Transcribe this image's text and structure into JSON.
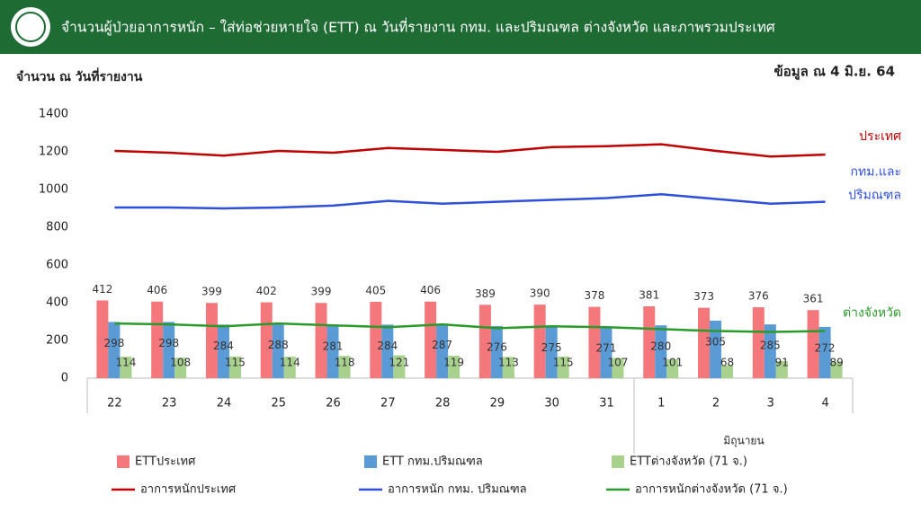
{
  "chart_data": {
    "type": "bar",
    "title": "จำนวนผู้ป่วยอาการหนัก – ใส่ท่อช่วยหายใจ (ETT) ณ วันที่รายงาน กทม. และปริมณฑล ต่างจังหวัด และภาพรวมประเทศ",
    "ylabel": "จำนวน ณ วันที่รายงาน",
    "note": "ข้อมูล ณ 4 มิ.ย. 64",
    "month_label": "มิถุนายน",
    "categories": [
      "22",
      "23",
      "24",
      "25",
      "26",
      "27",
      "28",
      "29",
      "30",
      "31",
      "1",
      "2",
      "3",
      "4"
    ],
    "ylim": [
      0,
      1400
    ],
    "yticks": [
      0,
      200,
      400,
      600,
      800,
      1000,
      1200,
      1400
    ],
    "grid": false,
    "series": [
      {
        "name": "ETTประเทศ",
        "type": "bar",
        "color": "#f4777c",
        "values": [
          412,
          406,
          399,
          402,
          399,
          405,
          406,
          389,
          390,
          378,
          381,
          373,
          376,
          361
        ]
      },
      {
        "name": "ETT กทม.ปริมณฑล",
        "type": "bar",
        "color": "#5b9bd5",
        "values": [
          298,
          298,
          284,
          288,
          281,
          284,
          287,
          276,
          275,
          271,
          280,
          305,
          285,
          272
        ]
      },
      {
        "name": "ETTต่างจังหวัด (71 จ.)",
        "type": "bar",
        "color": "#a9d18e",
        "values": [
          114,
          108,
          115,
          114,
          118,
          121,
          119,
          113,
          115,
          107,
          101,
          68,
          91,
          89
        ]
      },
      {
        "name": "อาการหนักประเทศ",
        "type": "line",
        "color": "#c00000",
        "end_label": [
          "ประเทศ"
        ],
        "values": [
          1205,
          1195,
          1180,
          1205,
          1195,
          1220,
          1210,
          1200,
          1225,
          1230,
          1240,
          1205,
          1175,
          1185
        ]
      },
      {
        "name": "อาการหนัก กทม. ปริมณฑล",
        "type": "line",
        "color": "#2e4fd9",
        "end_label": [
          "กทม.และ",
          "ปริมณฑล"
        ],
        "values": [
          905,
          905,
          900,
          905,
          915,
          940,
          925,
          935,
          945,
          955,
          975,
          950,
          925,
          935
        ]
      },
      {
        "name": "อาการหนักต่างจังหวัด (71 จ.)",
        "type": "line",
        "color": "#2a9a2a",
        "end_label": [
          "ต่างจังหวัด"
        ],
        "values": [
          290,
          285,
          275,
          290,
          280,
          270,
          285,
          265,
          275,
          270,
          260,
          250,
          245,
          250
        ]
      }
    ]
  }
}
